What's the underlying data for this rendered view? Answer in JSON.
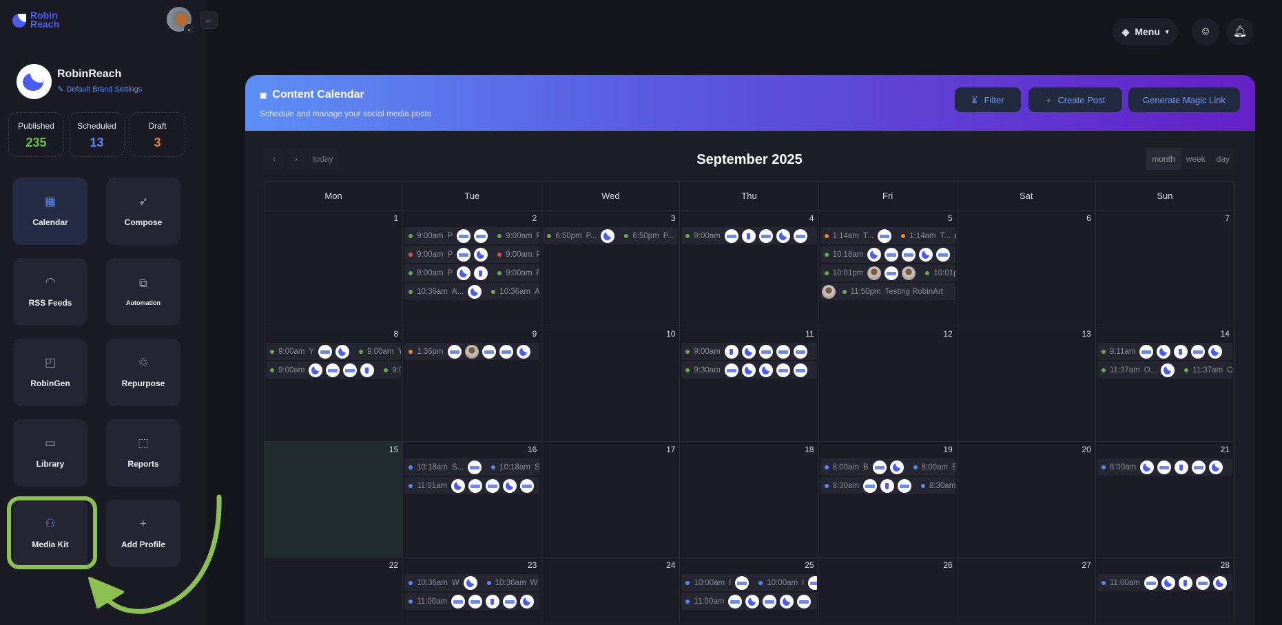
{
  "sidebar": {
    "logo": "Robin Reach",
    "brand": {
      "name": "RobinReach",
      "settings_link": "Default Brand Settings"
    },
    "stats": [
      {
        "label": "Published",
        "value": "235",
        "color": "#6cc04a"
      },
      {
        "label": "Scheduled",
        "value": "13",
        "color": "#5a8af5"
      },
      {
        "label": "Draft",
        "value": "3",
        "color": "#e88a2e"
      }
    ],
    "nav": [
      {
        "label": "Calendar",
        "icon": "calendar-icon",
        "glyph": "▦",
        "active": true
      },
      {
        "label": "Compose",
        "icon": "rocket-icon",
        "glyph": "➶"
      },
      {
        "label": "RSS Feeds",
        "icon": "rss-icon",
        "glyph": "◠"
      },
      {
        "label": "Automation",
        "icon": "automation-icon",
        "glyph": "⧉",
        "small": true
      },
      {
        "label": "RobinGen",
        "icon": "document-icon",
        "glyph": "◰"
      },
      {
        "label": "Repurpose",
        "icon": "recycle-icon",
        "glyph": "♲"
      },
      {
        "label": "Library",
        "icon": "folder-icon",
        "glyph": "▭"
      },
      {
        "label": "Reports",
        "icon": "chart-icon",
        "glyph": "⬚"
      },
      {
        "label": "Media Kit",
        "icon": "grid-circles-icon",
        "glyph": "⚇",
        "blue": true
      },
      {
        "label": "Add Profile",
        "icon": "plus-icon",
        "glyph": "+"
      }
    ],
    "highlight_color": "#8cc152"
  },
  "topbar": {
    "menu_label": "Menu"
  },
  "header": {
    "title": "Content Calendar",
    "subtitle": "Schedule and manage your social media posts",
    "buttons": {
      "filter": "Filter",
      "create": "Create Post",
      "magic": "Generate Magic Link"
    }
  },
  "calendar": {
    "title": "September 2025",
    "today_label": "today",
    "views": [
      "month",
      "week",
      "day"
    ],
    "active_view": "month",
    "days_of_week": [
      "Mon",
      "Tue",
      "Wed",
      "Thu",
      "Fri",
      "Sat",
      "Sun"
    ],
    "today": 15,
    "status_colors": {
      "g": "#6aa84f",
      "r": "#d9534f",
      "o": "#e88a2e",
      "b": "#5a8af5"
    },
    "weeks": [
      [
        {
          "day": 1,
          "events": []
        },
        {
          "day": 2,
          "events": [
            {
              "s": "g",
              "time": "9:00am",
              "title": "P",
              "avatars": [
                "text",
                "text"
              ],
              "repeat": true
            },
            {
              "s": "r",
              "time": "9:00am",
              "title": "P",
              "avatars": [
                "text",
                "robin"
              ],
              "repeat": true
            },
            {
              "s": "g",
              "time": "9:00am",
              "title": "P",
              "avatars": [
                "robin",
                "small"
              ],
              "repeat": true
            },
            {
              "s": "g",
              "time": "10:36am",
              "title": "A...",
              "avatars": [
                "robin"
              ],
              "repeat": true
            }
          ]
        },
        {
          "day": 3,
          "events": [
            {
              "s": "g",
              "time": "6:50pm",
              "title": "P...",
              "avatars": [
                "robin"
              ],
              "repeat": true
            }
          ]
        },
        {
          "day": 4,
          "events": [
            {
              "s": "g",
              "time": "9:00am",
              "title": "",
              "avatars": [
                "text",
                "small",
                "text",
                "robin",
                "text"
              ]
            }
          ]
        },
        {
          "day": 5,
          "events": [
            {
              "s": "o",
              "time": "1:14am",
              "title": "T...",
              "avatars": [
                "text"
              ],
              "repeat": true
            },
            {
              "s": "g",
              "time": "10:18am",
              "title": "",
              "avatars": [
                "robin",
                "text",
                "text",
                "robin",
                "text"
              ]
            },
            {
              "s": "g",
              "time": "10:01pm",
              "title": "",
              "avatars": [
                "photo",
                "text",
                "photo"
              ],
              "repeat": true
            },
            {
              "s": "g",
              "time": "11:50pm",
              "title": "Testing RobinArt",
              "avatars": [],
              "lead": "photo"
            }
          ]
        },
        {
          "day": 6,
          "events": []
        },
        {
          "day": 7,
          "events": []
        }
      ],
      [
        {
          "day": 8,
          "events": [
            {
              "s": "g",
              "time": "9:00am",
              "title": "Y",
              "avatars": [
                "text",
                "robin"
              ],
              "repeat": true
            },
            {
              "s": "g",
              "time": "9:00am",
              "title": "",
              "avatars": [
                "robin",
                "text",
                "text",
                "small"
              ],
              "repeat": true
            }
          ]
        },
        {
          "day": 9,
          "events": [
            {
              "s": "o",
              "time": "1:36pm",
              "title": "",
              "avatars": [
                "text",
                "photo",
                "text",
                "text",
                "robin"
              ]
            }
          ]
        },
        {
          "day": 10,
          "events": []
        },
        {
          "day": 11,
          "events": [
            {
              "s": "g",
              "time": "9:00am",
              "title": "",
              "avatars": [
                "small",
                "robin",
                "text",
                "text",
                "text"
              ]
            },
            {
              "s": "g",
              "time": "9:30am",
              "title": "",
              "avatars": [
                "text",
                "robin",
                "robin",
                "text",
                "text"
              ]
            }
          ]
        },
        {
          "day": 12,
          "events": []
        },
        {
          "day": 13,
          "events": []
        },
        {
          "day": 14,
          "events": [
            {
              "s": "g",
              "time": "9:11am",
              "title": "",
              "avatars": [
                "text",
                "robin",
                "small",
                "text",
                "robin"
              ]
            },
            {
              "s": "g",
              "time": "11:37am",
              "title": "O...",
              "avatars": [
                "robin"
              ],
              "repeat": true
            }
          ]
        }
      ],
      [
        {
          "day": 15,
          "events": []
        },
        {
          "day": 16,
          "events": [
            {
              "s": "b",
              "time": "10:18am",
              "title": "S...",
              "avatars": [
                "text"
              ],
              "repeat": true
            },
            {
              "s": "b",
              "time": "11:01am",
              "title": "",
              "avatars": [
                "robin",
                "text",
                "text",
                "robin",
                "text"
              ]
            }
          ]
        },
        {
          "day": 17,
          "events": []
        },
        {
          "day": 18,
          "events": []
        },
        {
          "day": 19,
          "events": [
            {
              "s": "b",
              "time": "8:00am",
              "title": "B",
              "avatars": [
                "text",
                "robin"
              ],
              "repeat": true
            },
            {
              "s": "b",
              "time": "8:30am",
              "title": "",
              "avatars": [
                "text",
                "small",
                "text"
              ],
              "repeat": true
            }
          ]
        },
        {
          "day": 20,
          "events": []
        },
        {
          "day": 21,
          "events": [
            {
              "s": "b",
              "time": "6:00am",
              "title": "",
              "avatars": [
                "robin",
                "text",
                "small",
                "text",
                "robin"
              ]
            }
          ]
        }
      ],
      [
        {
          "day": 22,
          "events": []
        },
        {
          "day": 23,
          "events": [
            {
              "s": "b",
              "time": "10:36am",
              "title": "W",
              "avatars": [
                "robin"
              ],
              "repeat": true
            },
            {
              "s": "b",
              "time": "11:00am",
              "title": "",
              "avatars": [
                "text",
                "text",
                "small",
                "text",
                "robin"
              ]
            }
          ]
        },
        {
          "day": 24,
          "events": []
        },
        {
          "day": 25,
          "events": [
            {
              "s": "b",
              "time": "10:00am",
              "title": "I",
              "avatars": [
                "text"
              ],
              "repeat": true
            },
            {
              "s": "b",
              "time": "11:00am",
              "title": "",
              "avatars": [
                "text",
                "robin",
                "text",
                "robin",
                "text"
              ]
            }
          ]
        },
        {
          "day": 26,
          "events": []
        },
        {
          "day": 27,
          "events": []
        },
        {
          "day": 28,
          "events": [
            {
              "s": "b",
              "time": "11:00am",
              "title": "",
              "avatars": [
                "text",
                "robin",
                "small",
                "text",
                "robin"
              ]
            }
          ]
        }
      ]
    ]
  }
}
